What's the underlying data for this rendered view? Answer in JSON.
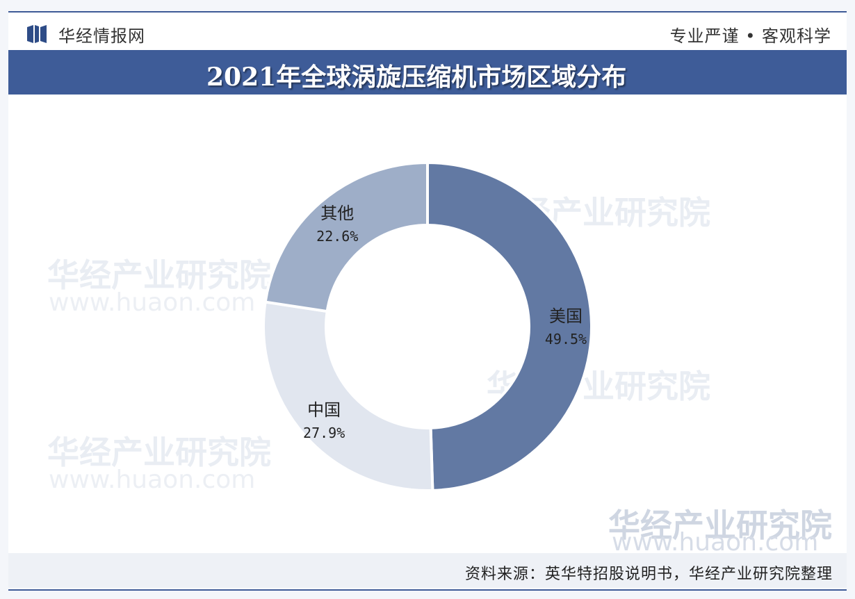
{
  "header": {
    "brand_name": "华经情报网",
    "slogan": "专业严谨 • 客观科学"
  },
  "title": "2021年全球涡旋压缩机市场区域分布",
  "source": "资料来源：英华特招股说明书，华经产业研究院整理",
  "watermarks": {
    "org": "华经产业研究院",
    "url": "www.huaon.com"
  },
  "colors": {
    "title_bar": "#3e5c98",
    "usa": "#6279a3",
    "china": "#e1e6ef",
    "other": "#9eaec8"
  },
  "chart_data": {
    "type": "pie",
    "variant": "donut",
    "title": "2021年全球涡旋压缩机市场区域分布",
    "slices": [
      {
        "label": "美国",
        "value": 49.5,
        "display": "49.5%",
        "color": "#6279a3"
      },
      {
        "label": "中国",
        "value": 27.9,
        "display": "27.9%",
        "color": "#e1e6ef"
      },
      {
        "label": "其他",
        "value": 22.6,
        "display": "22.6%",
        "color": "#9eaec8"
      }
    ],
    "start": "top",
    "direction": "clockwise",
    "legend": "none"
  }
}
